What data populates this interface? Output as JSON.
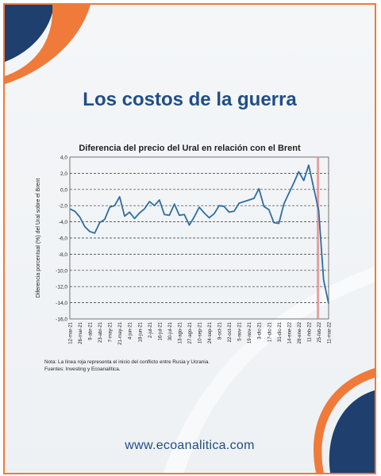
{
  "poster": {
    "title": "Los costos de la guerra",
    "website": "www.ecoanalitica.com",
    "note": "Nota: La línea roja representa el inicio del conflicto entre Rusia y Ucrania.",
    "sources": "Fuentes: Investing y Ecoanalítica.",
    "colors": {
      "accent_orange": "#f07a3a",
      "navy": "#1f4e87",
      "series": "#2f6da3",
      "marker": "#e88a8a"
    }
  },
  "chart_data": {
    "type": "line",
    "title": "Diferencia del precio del Ural en relación con el Brent",
    "ylabel": "Diferencia porcentual (%) del Ural sobre el Brent",
    "xlabel": "",
    "ylim": [
      -16,
      4
    ],
    "yticks": [
      4,
      2,
      0,
      -2,
      -4,
      -6,
      -8,
      -10,
      -12,
      -14,
      -16
    ],
    "ytick_labels": [
      "4,0",
      "2,0",
      "0,0",
      "-2,0",
      "-4,0",
      "-6,0",
      "-8,0",
      "-10,0",
      "-12,0",
      "-14,0",
      "-16,0"
    ],
    "xtick_labels": [
      "12-mar-21",
      "26-mar-21",
      "9-abr-21",
      "23-abr-21",
      "7-may-21",
      "21-may-21",
      "4-jun-21",
      "18-jun-21",
      "2-jul-21",
      "16-jul-21",
      "30-jul-21",
      "13-ago-21",
      "27-ago-21",
      "10-sep-21",
      "24-sep-21",
      "8-oct-21",
      "22-oct-21",
      "5-nov-21",
      "19-nov-21",
      "3-dic-21",
      "17-dic-21",
      "31-dic-21",
      "14-ene-22",
      "28-ene-22",
      "11-feb-22",
      "25-feb-22",
      "11-mar-22"
    ],
    "grid": "horizontal-dashed",
    "vertical_marker_label": "Inicio del conflicto entre Rusia y Ucrania",
    "vertical_marker_x": "24-feb-22",
    "series": [
      {
        "x": [
          "12-mar-21",
          "19-mar-21",
          "26-mar-21",
          "2-abr-21",
          "9-abr-21",
          "16-abr-21",
          "23-abr-21",
          "30-abr-21",
          "7-may-21",
          "14-may-21",
          "21-may-21",
          "28-may-21",
          "4-jun-21",
          "11-jun-21",
          "18-jun-21",
          "25-jun-21",
          "2-jul-21",
          "9-jul-21",
          "16-jul-21",
          "23-jul-21",
          "30-jul-21",
          "6-ago-21",
          "13-ago-21",
          "20-ago-21",
          "27-ago-21",
          "3-sep-21",
          "10-sep-21",
          "17-sep-21",
          "24-sep-21",
          "1-oct-21",
          "8-oct-21",
          "15-oct-21",
          "22-oct-21",
          "29-oct-21",
          "5-nov-21",
          "12-nov-21",
          "19-nov-21",
          "26-nov-21",
          "3-dic-21",
          "10-dic-21",
          "17-dic-21",
          "24-dic-21",
          "31-dic-21",
          "7-ene-22",
          "14-ene-22",
          "21-ene-22",
          "28-ene-22",
          "4-feb-22",
          "11-feb-22",
          "18-feb-22",
          "25-feb-22",
          "4-mar-22",
          "11-mar-22"
        ],
        "values": [
          -2.4,
          -2.7,
          -3.4,
          -4.6,
          -5.2,
          -5.4,
          -4.1,
          -3.7,
          -2.2,
          -2.0,
          -0.9,
          -3.3,
          -2.8,
          -3.6,
          -2.9,
          -2.4,
          -1.5,
          -2.0,
          -1.3,
          -3.1,
          -3.2,
          -1.8,
          -3.2,
          -3.1,
          -4.4,
          -3.4,
          -2.2,
          -2.9,
          -3.5,
          -3.0,
          -2.0,
          -2.1,
          -2.8,
          -2.7,
          -1.7,
          -1.5,
          -1.3,
          -1.1,
          0.1,
          -2.1,
          -2.5,
          -4.1,
          -4.2,
          -1.8,
          -0.5,
          0.8,
          2.2,
          1.1,
          3.0,
          0.2,
          -2.6,
          -11.2,
          -14.1
        ]
      }
    ]
  }
}
